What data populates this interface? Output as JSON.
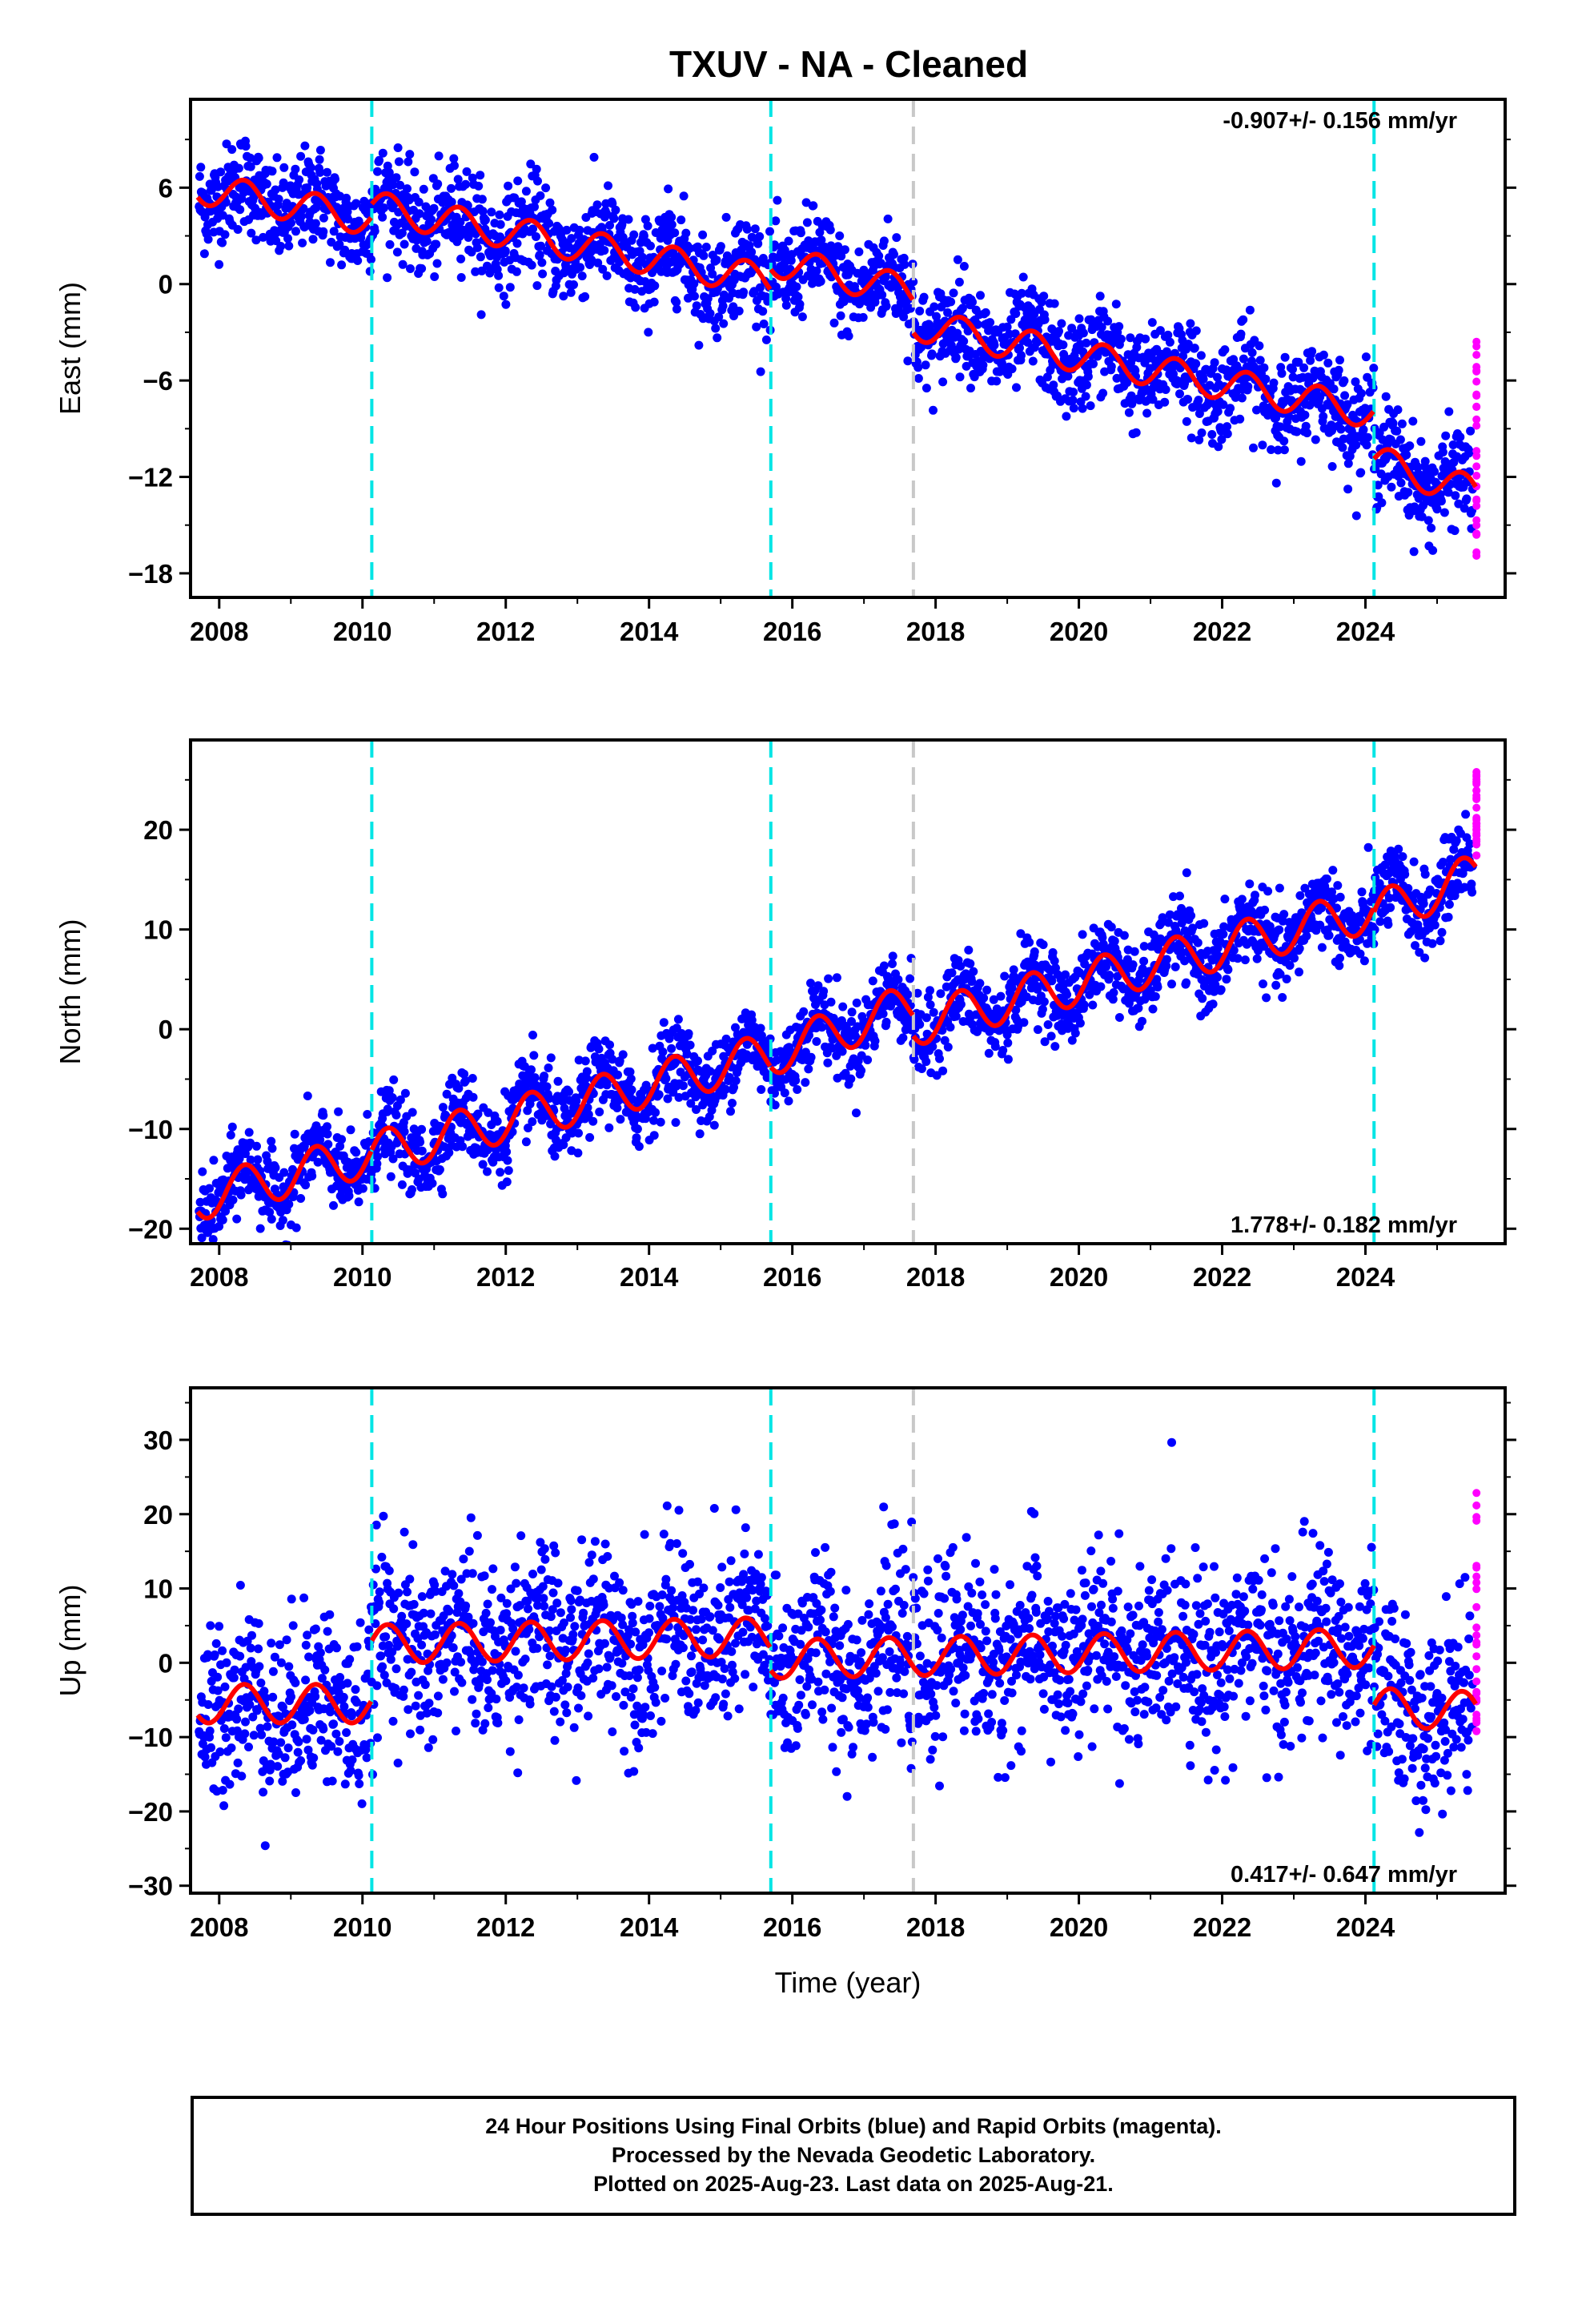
{
  "title": "TXUV  - NA - Cleaned",
  "footer": {
    "line1": "24 Hour Positions Using Final Orbits (blue) and Rapid Orbits (magenta).",
    "line2": "Processed by the Nevada Geodetic Laboratory.",
    "line3": "Plotted on 2025-Aug-23. Last data on 2025-Aug-21."
  },
  "colors": {
    "final": "#0000ff",
    "rapid": "#ff00ff",
    "model": "#ff0000",
    "offset_line": "#00e5e5",
    "equipment_line": "#c8c8c8"
  },
  "chart_data": [
    {
      "type": "scatter",
      "title": "TXUV  - NA - Cleaned",
      "ylabel": "East (mm)",
      "xlabel": "",
      "xlim": [
        2007.6,
        2025.95
      ],
      "ylim": [
        -19.5,
        11.5
      ],
      "yticks": [
        6,
        0,
        -6,
        -12,
        -18
      ],
      "ytick_labels": [
        "6",
        "0",
        "−6",
        "−12",
        "−18"
      ],
      "xticks": [
        2008,
        2010,
        2012,
        2014,
        2016,
        2018,
        2020,
        2022,
        2024
      ],
      "rate_label": "-0.907+/- 0.156 mm/yr",
      "rate_position": "top-right",
      "vlines_cyan": [
        2010.13,
        2015.7,
        2024.12
      ],
      "vlines_gray": [
        2017.69
      ],
      "series": [
        {
          "x_start": 2007.7,
          "x_end": 2025.5,
          "steps": [
            {
              "at": 2007.7,
              "y": 6.0
            },
            {
              "at": 2010.13,
              "y": 4.0
            },
            {
              "at": 2015.7,
              "y": 0.0
            },
            {
              "at": 2017.69,
              "y": -2.5
            },
            {
              "at": 2020.0,
              "y": -4.5
            },
            {
              "at": 2024.12,
              "y": -8.0
            },
            {
              "at": 2025.5,
              "y": -12.5
            }
          ],
          "seasonal_amplitude": 1.0,
          "scatter": 1.5
        }
      ],
      "model_segments": [
        {
          "x0": 2007.7,
          "x1": 2010.13,
          "y0": 6.0,
          "y1": 4.0
        },
        {
          "x0": 2010.13,
          "x1": 2015.7,
          "y0": 4.8,
          "y1": 0.2
        },
        {
          "x0": 2015.7,
          "x1": 2017.69,
          "y0": 1.5,
          "y1": -0.5
        },
        {
          "x0": 2017.69,
          "x1": 2024.12,
          "y0": -2.5,
          "y1": -8.0
        },
        {
          "x0": 2024.12,
          "x1": 2025.55,
          "y0": -11.0,
          "y1": -13.0
        }
      ],
      "rapid": {
        "x": 2025.55,
        "y_range": [
          -17,
          -3
        ]
      }
    },
    {
      "type": "scatter",
      "title": "",
      "ylabel": "North (mm)",
      "xlabel": "",
      "xlim": [
        2007.6,
        2025.95
      ],
      "ylim": [
        -21.5,
        29
      ],
      "yticks": [
        20,
        10,
        0,
        -10,
        -20
      ],
      "ytick_labels": [
        "20",
        "10",
        "0",
        "−10",
        "−20"
      ],
      "xticks": [
        2008,
        2010,
        2012,
        2014,
        2016,
        2018,
        2020,
        2022,
        2024
      ],
      "rate_label": "1.778+/- 0.182 mm/yr",
      "rate_position": "bottom-right",
      "vlines_cyan": [
        2010.13,
        2015.7,
        2024.12
      ],
      "vlines_gray": [
        2017.69
      ],
      "model_segments": [
        {
          "x0": 2007.7,
          "x1": 2010.13,
          "y0": -17.0,
          "y1": -12.5
        },
        {
          "x0": 2010.13,
          "x1": 2015.7,
          "y0": -12.5,
          "y1": -2.5
        },
        {
          "x0": 2015.7,
          "x1": 2017.69,
          "y0": -2.5,
          "y1": 2.5
        },
        {
          "x0": 2017.69,
          "x1": 2024.12,
          "y0": 0.5,
          "y1": 12.0
        },
        {
          "x0": 2024.12,
          "x1": 2025.55,
          "y0": 11.5,
          "y1": 15.5
        }
      ],
      "seasonal_amplitude": 2.2,
      "scatter": 2.0,
      "rapid": {
        "x": 2025.55,
        "y_range": [
          17,
          26
        ]
      }
    },
    {
      "type": "scatter",
      "title": "",
      "ylabel": "Up (mm)",
      "xlabel": "Time (year)",
      "xlim": [
        2007.6,
        2025.95
      ],
      "ylim": [
        -31,
        37
      ],
      "yticks": [
        30,
        20,
        10,
        0,
        -10,
        -20,
        -30
      ],
      "ytick_labels": [
        "30",
        "20",
        "10",
        "0",
        "−10",
        "−20",
        "−30"
      ],
      "xticks": [
        2008,
        2010,
        2012,
        2014,
        2016,
        2018,
        2020,
        2022,
        2024
      ],
      "rate_label": "0.417+/- 0.647 mm/yr",
      "rate_position": "bottom-right",
      "vlines_cyan": [
        2010.13,
        2015.7,
        2024.12
      ],
      "vlines_gray": [
        2017.69
      ],
      "model_segments": [
        {
          "x0": 2007.7,
          "x1": 2010.13,
          "y0": -5.5,
          "y1": -5.5
        },
        {
          "x0": 2010.13,
          "x1": 2015.7,
          "y0": 2.5,
          "y1": 3.5
        },
        {
          "x0": 2015.7,
          "x1": 2024.12,
          "y0": 0.5,
          "y1": 2.0
        },
        {
          "x0": 2024.12,
          "x1": 2025.55,
          "y0": -6.0,
          "y1": -6.5
        }
      ],
      "seasonal_amplitude": 2.6,
      "scatter": 6.0,
      "rapid": {
        "x": 2025.55,
        "y_range": [
          -11,
          24
        ]
      }
    }
  ]
}
